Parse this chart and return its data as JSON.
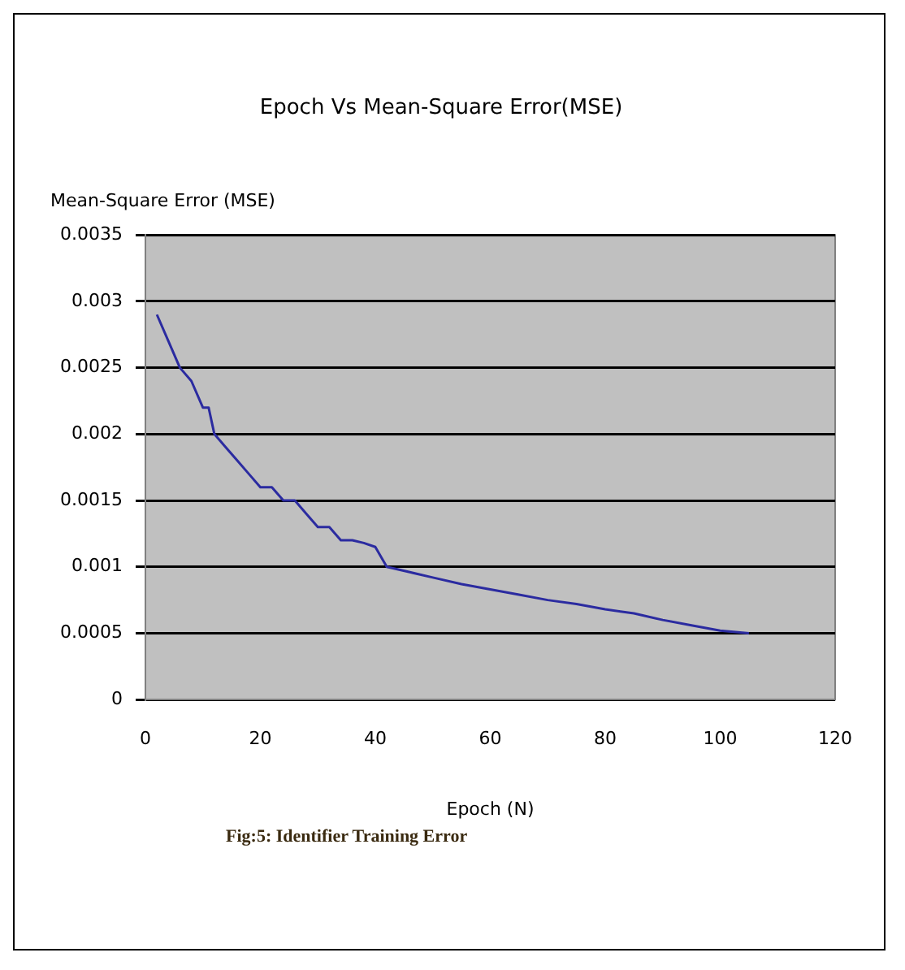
{
  "chart_data": {
    "type": "line",
    "title": "Epoch Vs Mean-Square Error(MSE)",
    "xlabel": "Epoch (N)",
    "ylabel": "Mean-Square Error (MSE)",
    "annotations": [
      "Fig:5: Identifier Training Error"
    ],
    "x": [
      2,
      4,
      6,
      8,
      10,
      11,
      12,
      14,
      16,
      18,
      20,
      22,
      24,
      26,
      28,
      30,
      32,
      34,
      36,
      38,
      40,
      42,
      46,
      50,
      55,
      60,
      65,
      70,
      75,
      80,
      85,
      90,
      95,
      100,
      105
    ],
    "series": [
      {
        "color": "#2b2ba0",
        "values": [
          0.0029,
          0.0027,
          0.0025,
          0.0024,
          0.0022,
          0.0022,
          0.002,
          0.0019,
          0.0018,
          0.0017,
          0.0016,
          0.0016,
          0.0015,
          0.0015,
          0.0014,
          0.0013,
          0.0013,
          0.0012,
          0.0012,
          0.00118,
          0.00115,
          0.001,
          0.00096,
          0.00092,
          0.00087,
          0.00083,
          0.00079,
          0.00075,
          0.00072,
          0.00068,
          0.00065,
          0.0006,
          0.00056,
          0.00052,
          0.0005
        ]
      }
    ],
    "xlim": [
      0,
      120
    ],
    "xticks": [
      0,
      20,
      40,
      60,
      80,
      100,
      120
    ],
    "ylim": [
      0,
      0.0035
    ],
    "yticks": [
      0,
      0.0005,
      0.001,
      0.0015,
      0.002,
      0.0025,
      0.003,
      0.0035
    ],
    "grid": "y",
    "legend": false,
    "marker": "none",
    "line_style": "solid"
  }
}
